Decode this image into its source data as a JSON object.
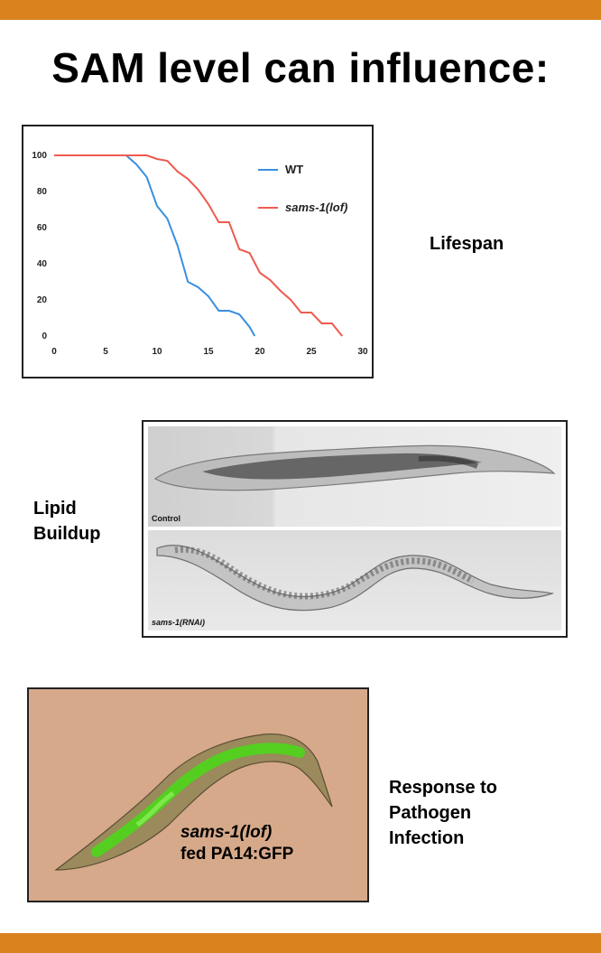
{
  "title": "SAM level can influence:",
  "colors": {
    "accent_bar": "#d9821e",
    "wt": "#3a8fe0",
    "sams": "#ef5a50",
    "gfp": "#4cd61a"
  },
  "labels": {
    "lifespan": "Lifespan",
    "lipid_line1": "Lipid",
    "lipid_line2": "Buildup",
    "response_line1": "Response to",
    "response_line2": "Pathogen",
    "response_line3": "Infection"
  },
  "micrographs": {
    "control_label": "Control",
    "rnai_label": "sams-1(RNAi)"
  },
  "gfp_image": {
    "caption_line1": "sams-1(lof)",
    "caption_line2": "fed PA14:GFP"
  },
  "chart_data": {
    "type": "line",
    "title": "",
    "xlabel": "",
    "ylabel": "",
    "xlim": [
      0,
      30
    ],
    "ylim": [
      0,
      100
    ],
    "xticks": [
      0,
      5,
      10,
      15,
      20,
      25,
      30
    ],
    "yticks": [
      0,
      20,
      40,
      60,
      80,
      100
    ],
    "legend_position": "top-right",
    "series": [
      {
        "name": "WT",
        "color": "#3a8fe0",
        "x": [
          0,
          7,
          8,
          9,
          10,
          11,
          12,
          13,
          14,
          15,
          16,
          17,
          18,
          19,
          19.5
        ],
        "y": [
          100,
          100,
          95,
          88,
          72,
          65,
          50,
          30,
          27,
          22,
          14,
          14,
          12,
          5,
          0
        ]
      },
      {
        "name": "sams-1(lof)",
        "color": "#ef5a50",
        "x": [
          0,
          9,
          10,
          11,
          12,
          13,
          14,
          15,
          16,
          17,
          18,
          19,
          20,
          21,
          22,
          23,
          24,
          25,
          26,
          27,
          28
        ],
        "y": [
          100,
          100,
          98,
          97,
          91,
          87,
          81,
          73,
          63,
          63,
          48,
          46,
          35,
          31,
          25,
          20,
          13,
          13,
          7,
          7,
          0
        ]
      }
    ]
  }
}
